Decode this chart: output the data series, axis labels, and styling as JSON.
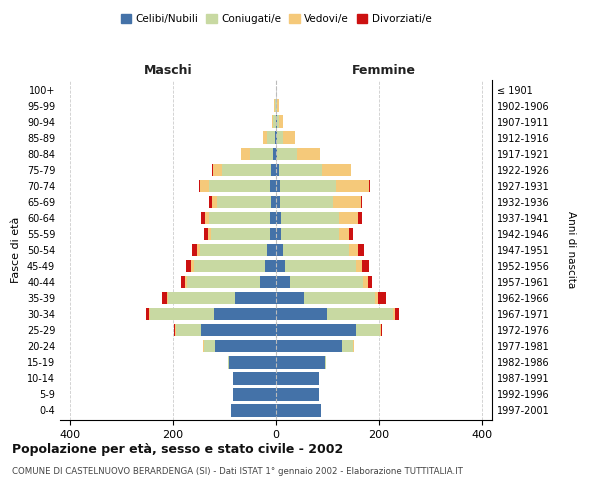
{
  "age_groups": [
    "0-4",
    "5-9",
    "10-14",
    "15-19",
    "20-24",
    "25-29",
    "30-34",
    "35-39",
    "40-44",
    "45-49",
    "50-54",
    "55-59",
    "60-64",
    "65-69",
    "70-74",
    "75-79",
    "80-84",
    "85-89",
    "90-94",
    "95-99",
    "100+"
  ],
  "birth_years": [
    "1997-2001",
    "1992-1996",
    "1987-1991",
    "1982-1986",
    "1977-1981",
    "1972-1976",
    "1967-1971",
    "1962-1966",
    "1957-1961",
    "1952-1956",
    "1947-1951",
    "1942-1946",
    "1937-1941",
    "1932-1936",
    "1927-1931",
    "1922-1926",
    "1917-1921",
    "1912-1916",
    "1907-1911",
    "1902-1906",
    "≤ 1901"
  ],
  "male": {
    "celibi": [
      88,
      83,
      83,
      92,
      118,
      145,
      120,
      80,
      32,
      22,
      18,
      12,
      12,
      10,
      12,
      10,
      5,
      2,
      0,
      0,
      0
    ],
    "coniugati": [
      0,
      0,
      0,
      2,
      22,
      50,
      125,
      130,
      142,
      138,
      130,
      115,
      118,
      105,
      118,
      95,
      45,
      15,
      5,
      2,
      0
    ],
    "vedovi": [
      0,
      0,
      0,
      0,
      2,
      2,
      2,
      2,
      3,
      5,
      5,
      5,
      8,
      10,
      18,
      18,
      18,
      8,
      3,
      2,
      0
    ],
    "divorziati": [
      0,
      0,
      0,
      0,
      0,
      2,
      5,
      10,
      8,
      10,
      10,
      8,
      8,
      5,
      2,
      2,
      0,
      0,
      0,
      0,
      0
    ]
  },
  "female": {
    "nubili": [
      88,
      83,
      83,
      95,
      128,
      155,
      100,
      55,
      28,
      18,
      14,
      10,
      10,
      8,
      8,
      5,
      2,
      2,
      2,
      0,
      0
    ],
    "coniugate": [
      0,
      0,
      0,
      2,
      22,
      48,
      128,
      138,
      142,
      138,
      128,
      112,
      112,
      102,
      108,
      85,
      38,
      12,
      4,
      2,
      0
    ],
    "vedove": [
      0,
      0,
      0,
      0,
      2,
      2,
      3,
      5,
      8,
      12,
      18,
      20,
      38,
      55,
      65,
      55,
      45,
      22,
      8,
      3,
      0
    ],
    "divorziate": [
      0,
      0,
      0,
      0,
      0,
      2,
      8,
      15,
      8,
      12,
      12,
      8,
      8,
      2,
      2,
      0,
      0,
      0,
      0,
      0,
      0
    ]
  },
  "colors": {
    "celibi": "#4472a8",
    "coniugati": "#c8d9a2",
    "vedovi": "#f5c97a",
    "divorziati": "#cc1111"
  },
  "xlim": 420,
  "title": "Popolazione per età, sesso e stato civile - 2002",
  "subtitle": "COMUNE DI CASTELNUOVO BERARDENGA (SI) - Dati ISTAT 1° gennaio 2002 - Elaborazione TUTTITALIA.IT",
  "ylabel": "Fasce di età",
  "ylabel_right": "Anni di nascita",
  "legend_labels": [
    "Celibi/Nubili",
    "Coniugati/e",
    "Vedovi/e",
    "Divorziati/e"
  ],
  "maschi_label": "Maschi",
  "femmine_label": "Femmine",
  "bg_color": "#ffffff",
  "grid_color": "#cccccc"
}
